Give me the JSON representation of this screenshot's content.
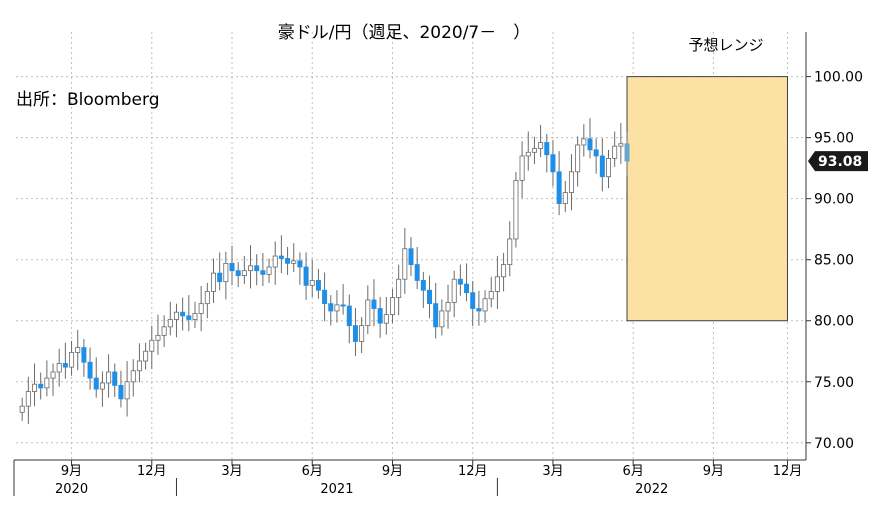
{
  "chart_data": {
    "type": "candlestick",
    "title": "豪ドル/円（週足、2020/7－　）",
    "source": "出所：Bloomberg",
    "range_label": "予想レンジ",
    "last_price_label": "93.08",
    "last_price": 93.08,
    "ylim": [
      69.0,
      103.0
    ],
    "yticks": [
      "70.00",
      "75.00",
      "80.00",
      "85.00",
      "90.00",
      "95.00",
      "100.00"
    ],
    "ytick_values": [
      70,
      75,
      80,
      85,
      90,
      95,
      100
    ],
    "forecast_range": {
      "low": 80.0,
      "high": 100.0,
      "start": 99,
      "end": 125
    },
    "x_month_labels": [
      {
        "label": "9月",
        "index": 9
      },
      {
        "label": "12月",
        "index": 22
      },
      {
        "label": "3月",
        "index": 35
      },
      {
        "label": "6月",
        "index": 48
      },
      {
        "label": "9月",
        "index": 61
      },
      {
        "label": "12月",
        "index": 74
      },
      {
        "label": "3月",
        "index": 87
      },
      {
        "label": "6月",
        "index": 100
      },
      {
        "label": "9月",
        "index": 113
      },
      {
        "label": "12月",
        "index": 125
      }
    ],
    "x_year_labels": [
      {
        "label": "2020",
        "index": 9
      },
      {
        "label": "2021",
        "index": 52
      },
      {
        "label": "2022",
        "index": 103
      }
    ],
    "year_dividers": [
      26,
      78
    ],
    "x_range": [
      0,
      128
    ],
    "weekly_close": [
      73.0,
      74.2,
      74.8,
      74.5,
      75.3,
      75.8,
      76.5,
      76.2,
      77.4,
      77.8,
      76.6,
      75.3,
      74.4,
      74.9,
      75.8,
      74.7,
      73.6,
      75.0,
      75.9,
      76.7,
      77.5,
      78.4,
      78.8,
      79.5,
      80.1,
      80.7,
      80.4,
      80.1,
      80.6,
      81.4,
      82.4,
      83.9,
      83.2,
      84.7,
      84.1,
      83.7,
      84.1,
      84.5,
      84.1,
      83.8,
      84.4,
      85.3,
      85.1,
      84.7,
      84.9,
      84.4,
      82.9,
      83.3,
      82.5,
      81.4,
      80.8,
      81.3,
      81.2,
      79.6,
      78.3,
      79.6,
      81.7,
      81.0,
      79.8,
      80.5,
      81.9,
      83.4,
      85.9,
      84.6,
      83.3,
      82.5,
      81.4,
      79.5,
      80.8,
      81.5,
      83.4,
      83.0,
      82.3,
      81.0,
      80.8,
      81.8,
      82.4,
      83.6,
      84.6,
      86.7,
      91.5,
      93.5,
      93.8,
      94.1,
      94.6,
      93.6,
      92.2,
      89.6,
      90.5,
      92.2,
      94.4,
      94.9,
      94.0,
      93.5,
      91.8,
      93.3,
      94.3,
      94.5,
      93.08
    ]
  }
}
